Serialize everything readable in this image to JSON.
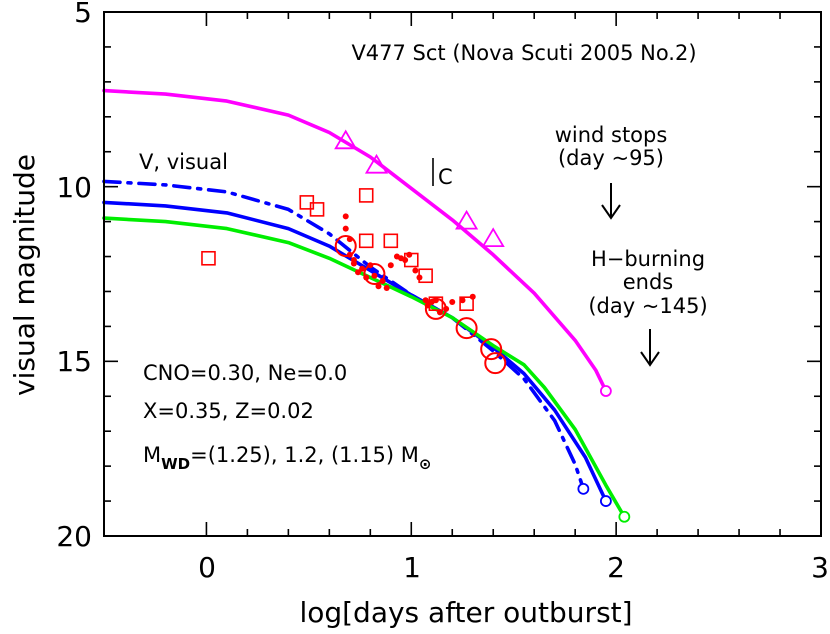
{
  "chart_data": {
    "type": "line",
    "title": "V477 Sct (Nova Scuti 2005 No.2)",
    "xlabel": "log[days after outburst]",
    "ylabel": "visual magnitude",
    "xlim": [
      -0.5,
      3.0
    ],
    "ylim": [
      5,
      20
    ],
    "y_inverted": true,
    "x_ticks": [
      0,
      1,
      2,
      3
    ],
    "y_ticks": [
      5,
      10,
      15,
      20
    ],
    "series": [
      {
        "color": "#ff00ff",
        "style": "solid",
        "x": [
          -0.5,
          -0.2,
          0.1,
          0.4,
          0.6,
          0.8,
          1.0,
          1.2,
          1.4,
          1.6,
          1.8,
          1.9,
          1.95
        ],
        "y": [
          7.25,
          7.35,
          7.55,
          7.95,
          8.45,
          9.15,
          10.05,
          10.95,
          11.95,
          13.05,
          14.4,
          15.25,
          15.85
        ],
        "end_marker": "open-circle"
      },
      {
        "color": "#0000ff",
        "style": "dashdot",
        "x": [
          -0.5,
          -0.2,
          0.1,
          0.4,
          0.6,
          0.8,
          1.0,
          1.2,
          1.4,
          1.55,
          1.7,
          1.8,
          1.84
        ],
        "y": [
          9.85,
          9.95,
          10.15,
          10.65,
          11.35,
          12.3,
          13.1,
          13.75,
          14.7,
          15.5,
          16.7,
          17.95,
          18.65
        ],
        "end_marker": "open-circle"
      },
      {
        "color": "#0000ff",
        "style": "solid",
        "x": [
          -0.5,
          -0.2,
          0.1,
          0.4,
          0.6,
          0.8,
          1.0,
          1.2,
          1.4,
          1.55,
          1.7,
          1.85,
          1.95
        ],
        "y": [
          10.45,
          10.55,
          10.75,
          11.2,
          11.7,
          12.4,
          13.1,
          13.75,
          14.6,
          15.35,
          16.4,
          17.75,
          19.0
        ],
        "end_marker": "open-circle"
      },
      {
        "color": "#00ee00",
        "style": "solid",
        "x": [
          -0.5,
          -0.2,
          0.1,
          0.4,
          0.6,
          0.8,
          1.0,
          1.2,
          1.4,
          1.55,
          1.65,
          1.8,
          1.95,
          2.04
        ],
        "y": [
          10.9,
          11.0,
          11.2,
          11.6,
          12.05,
          12.6,
          13.15,
          13.75,
          14.55,
          15.1,
          15.75,
          16.95,
          18.55,
          19.45
        ],
        "end_marker": "open-circle"
      }
    ],
    "triangles": {
      "color": "#ff00ff",
      "x": [
        0.68,
        0.83,
        1.27,
        1.4
      ],
      "y": [
        8.7,
        9.4,
        11.0,
        11.5
      ]
    },
    "open_squares": {
      "color": "#ff0000",
      "x": [
        0.01,
        0.49,
        0.54,
        0.78,
        0.78,
        0.9,
        1.0,
        1.07,
        1.12,
        1.27
      ],
      "y": [
        12.05,
        10.45,
        10.65,
        10.25,
        11.55,
        11.55,
        12.1,
        12.55,
        13.35,
        13.35
      ]
    },
    "filled_dots": {
      "color": "#ff0000",
      "x": [
        0.68,
        0.68,
        0.7,
        0.7,
        0.72,
        0.72,
        0.74,
        0.76,
        0.78,
        0.8,
        0.82,
        0.84,
        0.86,
        0.88,
        0.9,
        0.93,
        0.95,
        0.97,
        0.99,
        1.02,
        1.04,
        1.07,
        1.08,
        1.1,
        1.12,
        1.14,
        1.17,
        1.2,
        1.25,
        1.3
      ],
      "y": [
        10.85,
        11.2,
        11.5,
        11.95,
        12.1,
        12.2,
        12.45,
        12.35,
        12.6,
        12.25,
        12.55,
        12.85,
        12.7,
        12.9,
        12.25,
        12.0,
        12.05,
        12.1,
        11.95,
        12.4,
        12.6,
        13.25,
        13.4,
        13.3,
        13.25,
        13.6,
        13.5,
        13.3,
        13.25,
        13.15
      ]
    },
    "big_open_circles": {
      "color": "#ff0000",
      "x": [
        0.68,
        0.82,
        1.12,
        1.27,
        1.39,
        1.41
      ],
      "y": [
        11.7,
        12.5,
        13.5,
        14.05,
        14.65,
        15.05
      ]
    },
    "annotations": {
      "curve_label": "V, visual",
      "c_label": "C",
      "wind_line1": "wind stops",
      "wind_line2": "(day ~95)",
      "h_line1": "H−burning",
      "h_line2": "ends",
      "h_line3": "(day ~145)",
      "params1": "CNO=0.30, Ne=0.0",
      "params2": "X=0.35, Z=0.02",
      "params3_pre": "M",
      "params3_sub": "WD",
      "params3_post": "=(1.25), 1.2, (1.15) M",
      "sun_symbol": "⊙"
    }
  }
}
